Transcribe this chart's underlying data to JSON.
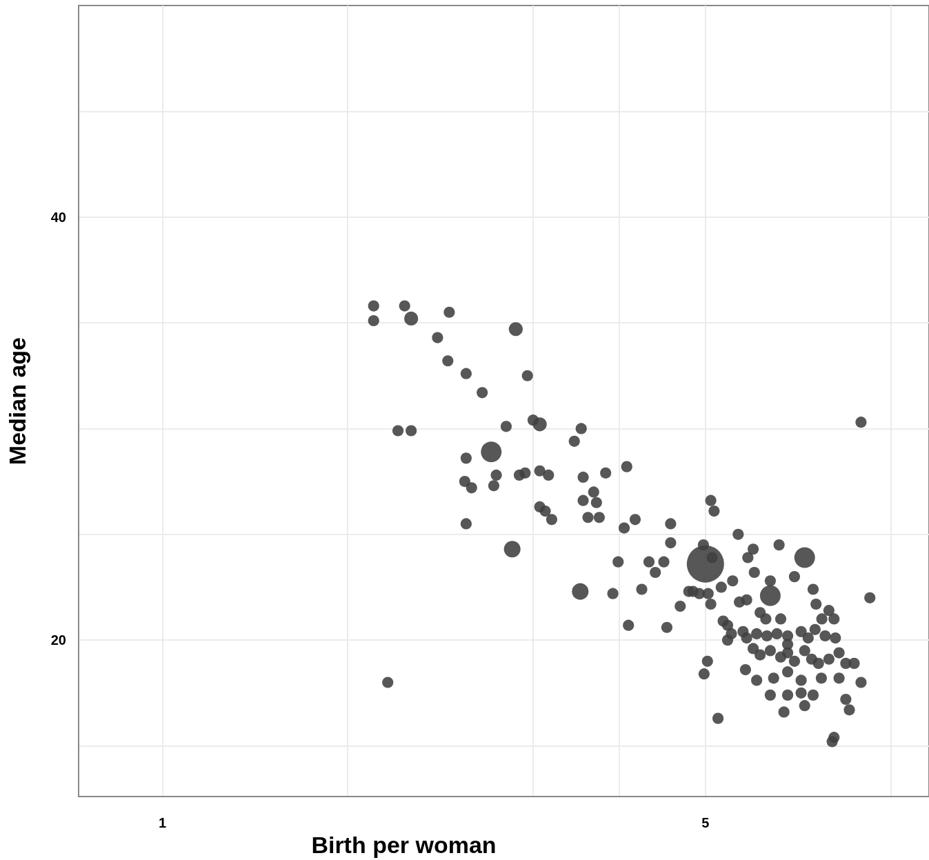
{
  "chart_data": {
    "type": "bubble",
    "xlabel": "Birth per woman",
    "ylabel": "Median age",
    "log": "x",
    "grid": true,
    "marker": "circle",
    "xlim": [
      0.78,
      9.7
    ],
    "xticks": [
      1,
      {
        "value": 1.73,
        "label": null
      },
      {
        "value": 3,
        "label": null
      },
      {
        "value": 3.87,
        "label": null
      },
      5,
      {
        "value": 8.66,
        "label": null
      }
    ],
    "ylim": [
      12.6,
      50
    ],
    "yticks": [
      {
        "value": 15,
        "label": null
      },
      20,
      {
        "value": 25,
        "label": null
      },
      {
        "value": 30,
        "label": null
      },
      {
        "value": 35,
        "label": null
      },
      40,
      {
        "value": 45,
        "label": null
      }
    ],
    "series": [
      {
        "color": "#404040",
        "x": [
          1.87,
          1.87,
          2.05,
          2.09,
          2.34,
          2.85,
          2.26,
          2.33,
          2.46,
          2.95,
          2.58,
          2.01,
          2.09,
          2.77,
          3.0,
          3.06,
          3.46,
          3.39,
          2.65,
          2.46,
          2.45,
          2.5,
          2.69,
          2.67,
          2.88,
          2.93,
          3.06,
          3.14,
          3.48,
          3.72,
          3.96,
          3.59,
          3.48,
          3.62,
          3.06,
          3.11,
          3.17,
          3.53,
          3.65,
          2.46,
          2.82,
          3.93,
          4.06,
          4.51,
          4.51,
          5.08,
          5.13,
          5.51,
          6.22,
          4.97,
          5.1,
          5.0,
          3.86,
          4.23,
          4.42,
          4.31,
          5.76,
          5.67,
          5.78,
          6.71,
          6.51,
          5.42,
          5.24,
          6.06,
          6.06,
          6.88,
          8.14,
          3.45,
          3.8,
          4.14,
          4.76,
          4.82,
          4.91,
          5.04,
          5.08,
          4.64,
          5.53,
          5.65,
          5.88,
          5.98,
          6.25,
          6.94,
          7.21,
          7.06,
          7.32,
          3.98,
          4.46,
          5.27,
          5.34,
          5.34,
          5.59,
          5.65,
          5.82,
          6.0,
          6.18,
          6.38,
          6.64,
          6.78,
          6.92,
          7.13,
          7.35,
          5.76,
          5.88,
          6.06,
          6.25,
          6.38,
          6.51,
          6.71,
          6.85,
          6.99,
          7.21,
          7.43,
          7.58,
          7.77,
          5.03,
          4.98,
          5.63,
          5.82,
          6.12,
          6.38,
          6.64,
          7.05,
          7.43,
          7.93,
          6.06,
          6.38,
          6.88,
          6.64,
          7.58,
          6.31,
          6.71,
          7.66,
          5.19,
          7.32,
          7.28,
          7.93,
          1.95,
          5.4,
          6.38
        ],
        "values": [
          35.8,
          35.1,
          35.8,
          35.2,
          35.5,
          34.7,
          34.3,
          33.2,
          32.6,
          32.5,
          31.7,
          29.9,
          29.9,
          30.1,
          30.4,
          30.2,
          30.0,
          29.4,
          28.9,
          28.6,
          27.5,
          27.2,
          27.8,
          27.3,
          27.8,
          27.9,
          28.0,
          27.8,
          27.7,
          27.9,
          28.2,
          27.0,
          26.6,
          26.5,
          26.3,
          26.1,
          25.7,
          25.8,
          25.8,
          25.5,
          24.3,
          25.3,
          25.7,
          25.5,
          24.6,
          26.6,
          26.1,
          25.0,
          24.5,
          24.5,
          23.9,
          23.6,
          23.7,
          23.7,
          23.7,
          23.2,
          24.3,
          23.9,
          23.2,
          23.9,
          23.0,
          22.8,
          22.5,
          22.8,
          22.1,
          22.4,
          22.0,
          22.3,
          22.2,
          22.4,
          22.3,
          22.3,
          22.2,
          22.2,
          21.7,
          21.6,
          21.8,
          21.9,
          21.3,
          21.0,
          21.0,
          21.7,
          21.4,
          21.0,
          21.0,
          20.7,
          20.6,
          20.9,
          20.7,
          20.0,
          20.4,
          20.1,
          20.3,
          20.2,
          20.3,
          20.2,
          20.4,
          20.1,
          20.5,
          20.2,
          20.1,
          19.6,
          19.3,
          19.5,
          19.2,
          19.4,
          19.0,
          19.5,
          19.1,
          18.9,
          19.1,
          19.4,
          18.9,
          18.9,
          19.0,
          18.4,
          18.6,
          18.1,
          18.2,
          18.5,
          18.1,
          18.2,
          18.2,
          18.0,
          17.4,
          17.4,
          17.4,
          17.5,
          17.2,
          16.6,
          16.9,
          16.7,
          16.3,
          15.4,
          15.2,
          30.3,
          18.0,
          20.3,
          19.8
        ],
        "sizes": [
          0.09,
          0.09,
          0.09,
          0.14,
          0.09,
          0.14,
          0.09,
          0.09,
          0.09,
          0.09,
          0.09,
          0.09,
          0.09,
          0.09,
          0.09,
          0.14,
          0.09,
          0.09,
          0.31,
          0.09,
          0.09,
          0.09,
          0.09,
          0.09,
          0.09,
          0.09,
          0.09,
          0.09,
          0.09,
          0.09,
          0.09,
          0.09,
          0.09,
          0.09,
          0.09,
          0.09,
          0.09,
          0.09,
          0.09,
          0.09,
          0.2,
          0.09,
          0.09,
          0.09,
          0.09,
          0.09,
          0.09,
          0.09,
          0.09,
          0.09,
          0.09,
          1,
          0.09,
          0.09,
          0.09,
          0.09,
          0.09,
          0.09,
          0.09,
          0.31,
          0.09,
          0.09,
          0.09,
          0.09,
          0.31,
          0.09,
          0.09,
          0.2,
          0.09,
          0.09,
          0.09,
          0.09,
          0.09,
          0.09,
          0.09,
          0.09,
          0.09,
          0.09,
          0.09,
          0.09,
          0.09,
          0.09,
          0.09,
          0.09,
          0.09,
          0.09,
          0.09,
          0.09,
          0.09,
          0.09,
          0.09,
          0.09,
          0.09,
          0.09,
          0.09,
          0.09,
          0.09,
          0.09,
          0.09,
          0.09,
          0.09,
          0.09,
          0.09,
          0.09,
          0.09,
          0.09,
          0.09,
          0.09,
          0.09,
          0.09,
          0.09,
          0.09,
          0.09,
          0.09,
          0.09,
          0.09,
          0.09,
          0.09,
          0.09,
          0.09,
          0.09,
          0.09,
          0.09,
          0.09,
          0.09,
          0.09,
          0.09,
          0.09,
          0.09,
          0.09,
          0.09,
          0.09,
          0.09,
          0.09,
          0.09,
          0.09,
          0.09,
          0.09,
          0.09
        ]
      }
    ]
  }
}
